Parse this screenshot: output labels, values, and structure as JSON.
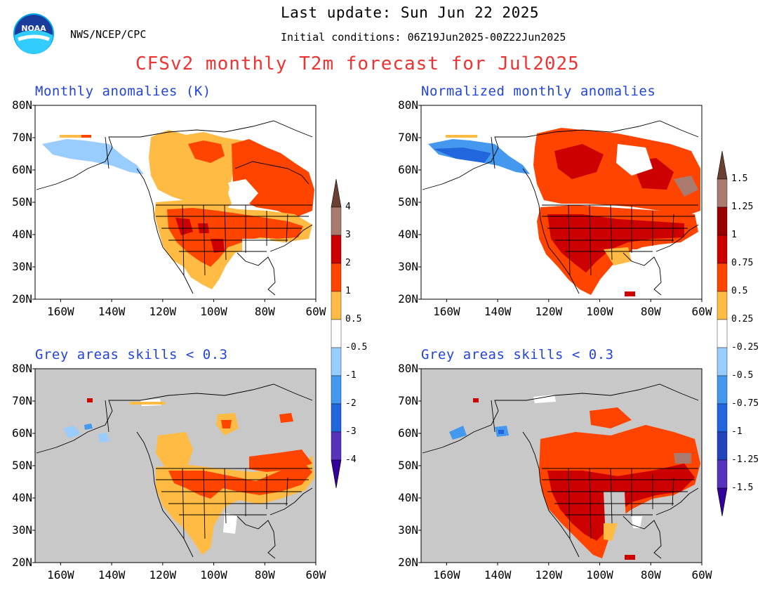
{
  "header": {
    "last_update": "Last update: Sun Jun 22 2025",
    "initial_conditions": "Initial conditions: 06Z19Jun2025-00Z22Jun2025",
    "agency": "NWS/NCEP/CPC",
    "logo_text": "NOAA",
    "title": "CFSv2 monthly T2m forecast for Jul2025"
  },
  "panels": {
    "top_left": {
      "title": "Monthly anomalies (K)"
    },
    "top_right": {
      "title": "Normalized monthly anomalies"
    },
    "bottom_left": {
      "title": "Grey areas skills < 0.3"
    },
    "bottom_right": {
      "title": "Grey areas skills < 0.3"
    }
  },
  "axes": {
    "lat_labels": [
      "80N",
      "70N",
      "60N",
      "50N",
      "40N",
      "30N",
      "20N"
    ],
    "lon_labels": [
      "160W",
      "140W",
      "120W",
      "100W",
      "80W",
      "60W"
    ],
    "lat_range": [
      20,
      80
    ],
    "lon_range": [
      -170,
      -60
    ]
  },
  "colorbars": {
    "anomaly": {
      "labels_top": [
        "4",
        "3",
        "2",
        "1",
        "0.5"
      ],
      "labels_bottom": [
        "-0.5",
        "-1",
        "-2",
        "-3",
        "-4"
      ]
    },
    "normalized": {
      "labels_top": [
        "1.5",
        "1.25",
        "1",
        "0.75",
        "0.5",
        "0.25"
      ],
      "labels_bottom": [
        "-0.25",
        "-0.5",
        "-0.75",
        "-1",
        "-1.25",
        "-1.5"
      ]
    }
  },
  "colors": {
    "warm": [
      "#ffbb44",
      "#ff4400",
      "#cc0000",
      "#990000",
      "#aa7a6e",
      "#6b4030"
    ],
    "cold": [
      "#99ccff",
      "#4499ee",
      "#2266dd",
      "#2244bb",
      "#5533bb",
      "#330099"
    ],
    "grey_mask": "#c8c8c8",
    "title_red": "#ee3333",
    "panel_title_blue": "#2244dd"
  }
}
